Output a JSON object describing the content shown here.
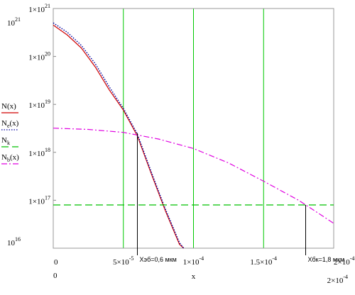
{
  "chart_data": {
    "type": "line",
    "log_y": true,
    "xlabel": "x",
    "xlim": [
      0,
      0.0002
    ],
    "xlim_labels": [
      "0",
      "2×10^-4"
    ],
    "xticks": [
      {
        "value": 0,
        "label": "0"
      },
      {
        "value": 5e-05,
        "label": "5×10^-5"
      },
      {
        "value": 0.0001,
        "label": "1×10^-4"
      },
      {
        "value": 0.00015,
        "label": "1.5×10^-4"
      },
      {
        "value": 0.0002,
        "label": "2×10^-4"
      }
    ],
    "ylim": [
      1e+16,
      1e+21
    ],
    "ylim_labels": [
      "10^16",
      "10^21"
    ],
    "yticks": [
      {
        "value": 1e+21,
        "label": "1×10^21"
      },
      {
        "value": 1e+20,
        "label": "1×10^20"
      },
      {
        "value": 1e+19,
        "label": "1×10^19"
      },
      {
        "value": 1e+18,
        "label": "1×10^18"
      },
      {
        "value": 1e+17,
        "label": "1×10^17"
      }
    ],
    "grid": "x",
    "grid_color": "#00c800",
    "series": [
      {
        "name": "N(x)",
        "color": "#d00000",
        "style": "solid",
        "x": [
          0,
          1e-05,
          2e-05,
          3e-05,
          4e-05,
          5e-05,
          6e-05,
          7e-05,
          8e-05,
          9e-05,
          9.3e-05
        ],
        "values": [
          4.5e+20,
          2.8e+20,
          1.5e+20,
          6e+19,
          2e+19,
          7.6e+18,
          2.2e+18,
          3.5e+17,
          6e+16,
          1.2e+16,
          1e+16
        ]
      },
      {
        "name": "N_e(x)",
        "color": "#0000a0",
        "style": "dotted",
        "x": [
          0,
          1e-05,
          2e-05,
          3e-05,
          4e-05,
          5e-05,
          6e-05,
          7e-05,
          8e-05,
          9e-05,
          9.3e-05
        ],
        "values": [
          5e+20,
          3.2e+20,
          1.7e+20,
          7e+19,
          2.3e+19,
          8.2e+18,
          2.4e+18,
          3.8e+17,
          6.5e+16,
          1.3e+16,
          1e+16
        ]
      },
      {
        "name": "N_k",
        "color": "#00c000",
        "style": "dashed",
        "x": [
          0,
          0.0002
        ],
        "values": [
          8e+16,
          8e+16
        ]
      },
      {
        "name": "N_b(x)",
        "color": "#e000e0",
        "style": "dashdot",
        "x": [
          0,
          2.5e-05,
          5e-05,
          7.5e-05,
          0.0001,
          0.000125,
          0.00015,
          0.000175,
          0.0002
        ],
        "values": [
          3.2e+18,
          3e+18,
          2.6e+18,
          1.9e+18,
          1.2e+18,
          6e+17,
          2.5e+17,
          1e+17,
          3.3e+16
        ]
      }
    ],
    "markers": [
      {
        "x": 6e-05,
        "y": 2.5e+18,
        "label": "Хэб=0,6 мкм"
      },
      {
        "x": 0.00018,
        "y": 8e+16,
        "label": "Хбк=1,8 мкм"
      }
    ]
  }
}
